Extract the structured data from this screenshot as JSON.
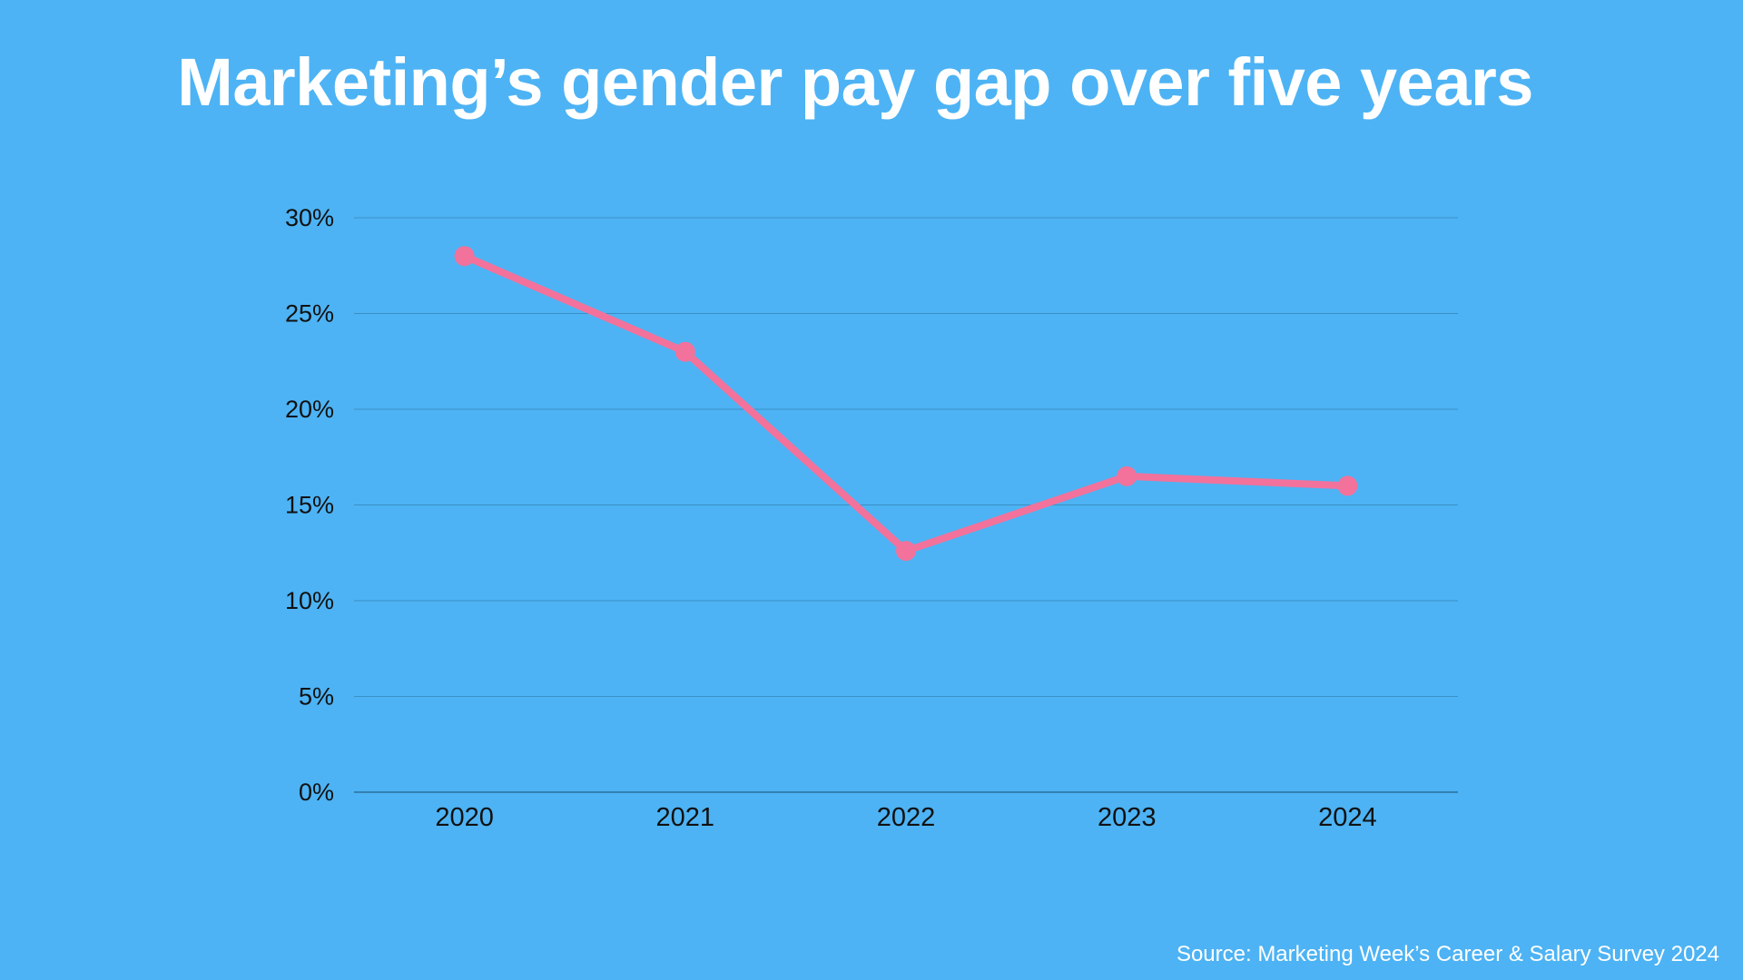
{
  "chart_data": {
    "type": "line",
    "title": "Marketing’s gender pay gap over five years",
    "xlabel": "",
    "ylabel": "",
    "categories": [
      "2020",
      "2021",
      "2022",
      "2023",
      "2024"
    ],
    "series": [
      {
        "name": "Gender pay gap",
        "values": [
          28,
          23,
          12.6,
          16.5,
          16
        ],
        "color": "#f2729c"
      }
    ],
    "ylim": [
      0,
      30
    ],
    "yticks": [
      0,
      5,
      10,
      15,
      20,
      25,
      30
    ],
    "ytick_labels": [
      "0%",
      "5%",
      "10%",
      "15%",
      "20%",
      "25%",
      "30%"
    ],
    "grid": true,
    "source": "Source: Marketing Week’s Career & Salary Survey 2024"
  },
  "colors": {
    "background": "#4db3f4",
    "gridline": "#3a8fc4",
    "axis": "#2c6f98",
    "tick_text": "#111111",
    "title_text": "#ffffff"
  }
}
